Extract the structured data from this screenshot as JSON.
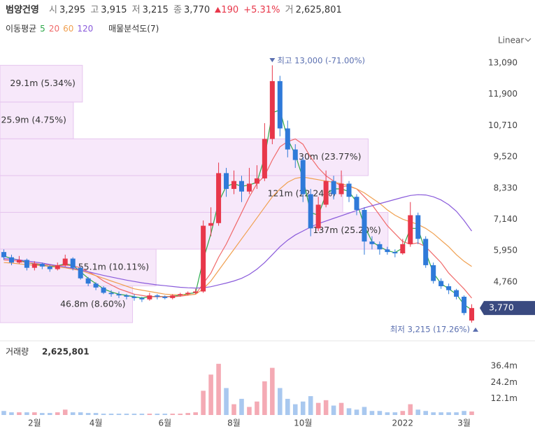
{
  "header": {
    "name": "범양건영",
    "open_label": "시",
    "open": "3,295",
    "high_label": "고",
    "high": "3,915",
    "low_label": "저",
    "low": "3,215",
    "close_label": "종",
    "close": "3,770",
    "change": "190",
    "change_pct": "+5.31%",
    "volume_label": "거",
    "volume": "2,625,801"
  },
  "ma_label": "이동평균",
  "profile_title": "매물분석도(7)",
  "scale_mode": "Linear",
  "chart_data": [
    {
      "type": "candlestick",
      "up_color": "#e8374a",
      "down_color": "#2f7ad9",
      "ylim": [
        2710,
        14020
      ],
      "yticks": [
        {
          "value": 4760,
          "label": "4,760"
        },
        {
          "value": 5950,
          "label": "5,950"
        },
        {
          "value": 7140,
          "label": "7,140"
        },
        {
          "value": 8330,
          "label": "8,330"
        },
        {
          "value": 9520,
          "label": "9,520"
        },
        {
          "value": 10710,
          "label": "10,710"
        },
        {
          "value": 11900,
          "label": "11,900"
        },
        {
          "value": 13090,
          "label": "13,090"
        }
      ],
      "open": [
        5900,
        5700,
        5500,
        5600,
        5300,
        5450,
        5350,
        5250,
        5400,
        5650,
        5300,
        4900,
        4700,
        4550,
        4350,
        4300,
        4250,
        4200,
        4150,
        4100,
        4250,
        4200,
        4150,
        4250,
        4300,
        4350,
        4400,
        6900,
        7000,
        8900,
        8300,
        8600,
        8200,
        8500,
        8700,
        10200,
        12400,
        10600,
        9800,
        9400,
        8100,
        6800,
        7700,
        8600,
        8100,
        8500,
        8000,
        7500,
        6300,
        6200,
        6000,
        5900,
        5850,
        6200,
        7300,
        6400,
        5400,
        4800,
        4600,
        4450,
        4200,
        3295
      ],
      "high": [
        6000,
        5800,
        5750,
        5650,
        5550,
        5500,
        5400,
        5500,
        5800,
        5700,
        5350,
        4950,
        4750,
        4600,
        4450,
        4400,
        4300,
        4300,
        4200,
        4350,
        4300,
        4250,
        4300,
        4350,
        4400,
        4500,
        7100,
        7600,
        9300,
        9100,
        9000,
        8800,
        9100,
        9200,
        10800,
        13000,
        12600,
        10900,
        10000,
        9500,
        8300,
        8000,
        9000,
        8800,
        9000,
        8600,
        8100,
        7600,
        6500,
        6300,
        6100,
        6000,
        6400,
        7800,
        7400,
        6500,
        5500,
        4900,
        4700,
        4500,
        4250,
        3915
      ],
      "low": [
        5600,
        5400,
        5450,
        5200,
        5200,
        5250,
        5150,
        5200,
        5350,
        5200,
        4850,
        4600,
        4450,
        4300,
        4200,
        4150,
        4100,
        4050,
        4000,
        4050,
        4100,
        4100,
        4100,
        4200,
        4250,
        4300,
        4350,
        6500,
        6900,
        8000,
        8100,
        7800,
        8100,
        8300,
        8600,
        10000,
        10300,
        9500,
        9100,
        7800,
        6500,
        6700,
        7600,
        7900,
        8000,
        7800,
        7300,
        5800,
        6000,
        5800,
        5800,
        5700,
        5800,
        6100,
        6200,
        5300,
        4700,
        4500,
        4300,
        4100,
        3500,
        3215
      ],
      "close": [
        5700,
        5500,
        5600,
        5300,
        5450,
        5350,
        5250,
        5400,
        5650,
        5300,
        4900,
        4700,
        4550,
        4350,
        4300,
        4250,
        4200,
        4150,
        4100,
        4250,
        4200,
        4150,
        4250,
        4300,
        4350,
        4400,
        6900,
        7000,
        8900,
        8300,
        8600,
        8200,
        8500,
        8700,
        10200,
        12400,
        10600,
        9800,
        9400,
        8100,
        6800,
        7700,
        8600,
        8100,
        8500,
        8000,
        7500,
        6300,
        6200,
        6000,
        5900,
        5850,
        6200,
        7300,
        6400,
        5400,
        4800,
        4600,
        4450,
        4200,
        3580,
        3770
      ],
      "series": [
        {
          "name": "5",
          "color": "#2ea84a",
          "values": [
            5750,
            5650,
            5600,
            5500,
            5450,
            5400,
            5350,
            5380,
            5450,
            5400,
            5150,
            4900,
            4700,
            4500,
            4380,
            4300,
            4250,
            4200,
            4150,
            4200,
            4220,
            4200,
            4220,
            4260,
            4310,
            4360,
            5600,
            6600,
            7800,
            8400,
            8500,
            8400,
            8450,
            8550,
            9500,
            11200,
            11300,
            10200,
            9600,
            8700,
            7400,
            7300,
            8100,
            8300,
            8300,
            8200,
            7800,
            6900,
            6300,
            6100,
            5950,
            5880,
            6050,
            6800,
            6800,
            5900,
            5100,
            4700,
            4500,
            4300,
            3900,
            3700
          ]
        },
        {
          "name": "20",
          "color": "#f06a6a",
          "values": [
            5600,
            5580,
            5550,
            5500,
            5470,
            5430,
            5400,
            5380,
            5400,
            5380,
            5300,
            5150,
            5000,
            4800,
            4650,
            4500,
            4400,
            4300,
            4250,
            4200,
            4200,
            4200,
            4200,
            4220,
            4260,
            4300,
            4700,
            5100,
            5700,
            6200,
            6800,
            7400,
            8000,
            8500,
            8800,
            9400,
            9900,
            10100,
            10200,
            10000,
            9500,
            9100,
            8800,
            8600,
            8400,
            8400,
            8300,
            8000,
            7700,
            7300,
            6900,
            6600,
            6300,
            6200,
            6250,
            6100,
            5800,
            5500,
            5100,
            4800,
            4500,
            4150
          ]
        },
        {
          "name": "60",
          "color": "#f0a050",
          "values": [
            5500,
            5480,
            5450,
            5420,
            5400,
            5380,
            5350,
            5320,
            5300,
            5250,
            5200,
            5100,
            5000,
            4900,
            4800,
            4700,
            4600,
            4500,
            4450,
            4400,
            4350,
            4300,
            4280,
            4270,
            4270,
            4290,
            4500,
            4800,
            5200,
            5600,
            6000,
            6400,
            6800,
            7200,
            7600,
            8000,
            8300,
            8550,
            8700,
            8750,
            8700,
            8650,
            8600,
            8550,
            8500,
            8420,
            8300,
            8150,
            7950,
            7750,
            7500,
            7300,
            7150,
            7050,
            6950,
            6800,
            6600,
            6350,
            6100,
            5800,
            5550,
            5350
          ]
        },
        {
          "name": "120",
          "color": "#8a5bdb",
          "values": [
            5650,
            5630,
            5600,
            5560,
            5520,
            5480,
            5430,
            5380,
            5330,
            5280,
            5220,
            5150,
            5080,
            5010,
            4950,
            4890,
            4830,
            4780,
            4730,
            4690,
            4650,
            4620,
            4590,
            4560,
            4540,
            4530,
            4540,
            4580,
            4650,
            4720,
            4800,
            4900,
            5050,
            5250,
            5500,
            5800,
            6100,
            6350,
            6550,
            6700,
            6850,
            6980,
            7080,
            7180,
            7280,
            7380,
            7480,
            7580,
            7660,
            7740,
            7820,
            7900,
            7980,
            8050,
            8080,
            8070,
            8000,
            7880,
            7700,
            7450,
            7100,
            6700
          ]
        }
      ],
      "volume_profile": {
        "color": "#f2d9f7",
        "values": [
          29.1,
          25.9,
          130,
          121,
          137,
          55.1,
          46.8
        ],
        "value_labels": [
          "29.1m (5.34%)",
          "25.9m (4.75%)",
          "130m (23.77%)",
          "121m (22.24%)",
          "137m (25.20%)",
          "55.1m (10.11%)",
          "46.8m (8.60%)"
        ]
      },
      "annotations": {
        "high": "최고 13,000 (-71.00%)",
        "low": "최저 3,215 (17.26%)"
      },
      "last_price": {
        "value": 3770,
        "label": "3,770"
      }
    },
    {
      "type": "bar",
      "title": "거래량",
      "subtitle": "2,625,801",
      "up_color": "#f4aab4",
      "down_color": "#a9c8ef",
      "ylim": [
        0,
        45.7
      ],
      "yticks": [
        {
          "value": 12.1,
          "label": "12.1m"
        },
        {
          "value": 24.2,
          "label": "24.2m"
        },
        {
          "value": 36.4,
          "label": "36.4m"
        }
      ],
      "categories": [
        null,
        null,
        null,
        null,
        "2월",
        null,
        null,
        null,
        null,
        null,
        null,
        null,
        "4월",
        null,
        null,
        null,
        null,
        null,
        null,
        null,
        null,
        "6월",
        null,
        null,
        null,
        null,
        null,
        null,
        null,
        null,
        "8월",
        null,
        null,
        null,
        null,
        null,
        null,
        null,
        null,
        "10월",
        null,
        null,
        null,
        null,
        null,
        null,
        null,
        null,
        null,
        null,
        null,
        null,
        "2022",
        null,
        null,
        null,
        null,
        null,
        null,
        null,
        "3월",
        null
      ],
      "values": [
        3,
        2,
        2,
        2,
        2,
        1.5,
        1.5,
        2,
        4,
        2,
        2,
        1.5,
        1.5,
        1,
        1,
        1,
        1,
        1,
        1,
        1,
        1,
        1,
        1,
        1,
        1.5,
        2,
        18,
        30,
        38,
        20,
        8,
        12,
        6,
        10,
        25,
        35,
        20,
        12,
        8,
        10,
        14,
        9,
        11,
        7,
        9,
        5,
        4,
        6,
        3,
        3,
        2,
        2,
        3,
        8,
        4,
        3,
        2,
        2,
        2,
        2,
        3,
        2.6
      ]
    }
  ]
}
